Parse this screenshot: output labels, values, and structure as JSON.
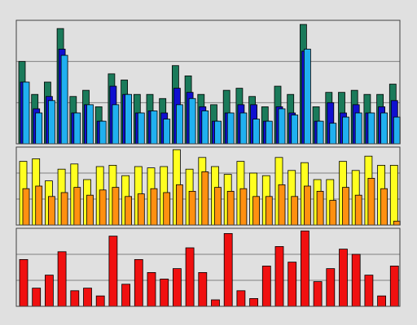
{
  "chart_data": [
    {
      "type": "bar",
      "ylim": [
        0,
        3
      ],
      "yticks": [
        0,
        1,
        2,
        3
      ],
      "grid": true,
      "series": [
        {
          "color": "#1a7a5a",
          "values": [
            2.0,
            1.2,
            1.5,
            2.8,
            1.15,
            1.3,
            0.9,
            1.7,
            1.55,
            1.2,
            1.2,
            1.1,
            1.9,
            1.65,
            1.2,
            0.95,
            1.3,
            1.35,
            1.15,
            0.9,
            1.4,
            1.2,
            2.9,
            0.9,
            1.25,
            1.25,
            1.3,
            1.2,
            1.2,
            1.45
          ]
        },
        {
          "color": "#1010d0",
          "values": [
            1.5,
            0.85,
            1.15,
            2.3,
            0.75,
            0.95,
            0.55,
            1.4,
            1.2,
            0.75,
            0.8,
            0.75,
            1.35,
            1.25,
            0.9,
            0.55,
            0.75,
            0.95,
            0.95,
            0.55,
            0.9,
            0.75,
            2.25,
            0.55,
            1.0,
            0.75,
            0.95,
            0.75,
            0.9,
            1.05
          ]
        },
        {
          "color": "#20b0f0",
          "values": [
            1.5,
            0.75,
            1.05,
            2.15,
            0.75,
            0.95,
            0.55,
            0.95,
            1.2,
            0.75,
            0.8,
            0.6,
            0.95,
            1.1,
            0.8,
            0.55,
            0.75,
            0.75,
            0.6,
            0.55,
            0.85,
            0.7,
            2.3,
            0.55,
            0.5,
            0.65,
            0.75,
            0.75,
            0.75,
            0.65
          ]
        }
      ]
    },
    {
      "type": "bar",
      "ylim": [
        0,
        3
      ],
      "yticks": [
        0,
        1,
        2,
        3
      ],
      "grid": true,
      "series": [
        {
          "color": "#ffff20",
          "values": [
            2.45,
            2.55,
            1.7,
            2.15,
            2.35,
            1.75,
            2.25,
            2.3,
            1.9,
            2.25,
            2.2,
            2.25,
            2.9,
            2.15,
            2.6,
            2.25,
            1.95,
            2.45,
            2.0,
            1.9,
            2.6,
            2.1,
            2.4,
            1.75,
            1.75,
            2.45,
            2.1,
            2.65,
            2.3,
            2.3
          ]
        },
        {
          "color": "#ff9010",
          "values": [
            1.4,
            1.5,
            1.1,
            1.25,
            1.45,
            1.15,
            1.35,
            1.45,
            1.1,
            1.2,
            1.4,
            1.25,
            1.55,
            1.3,
            2.05,
            1.45,
            1.3,
            1.4,
            1.1,
            1.1,
            1.55,
            1.1,
            1.5,
            1.3,
            0.95,
            1.45,
            1.15,
            1.8,
            1.4,
            0.15
          ]
        }
      ]
    },
    {
      "type": "bar",
      "ylim": [
        0,
        3
      ],
      "yticks": [
        0,
        1,
        2,
        3
      ],
      "grid": true,
      "series": [
        {
          "color": "#f01010",
          "values": [
            1.8,
            0.7,
            1.2,
            2.1,
            0.6,
            0.7,
            0.4,
            2.7,
            0.85,
            1.8,
            1.3,
            1.05,
            1.45,
            2.25,
            1.3,
            0.25,
            2.8,
            0.6,
            0.3,
            1.55,
            2.3,
            1.7,
            2.9,
            0.95,
            1.45,
            2.2,
            2.0,
            1.2,
            0.4,
            1.55
          ]
        }
      ]
    }
  ]
}
